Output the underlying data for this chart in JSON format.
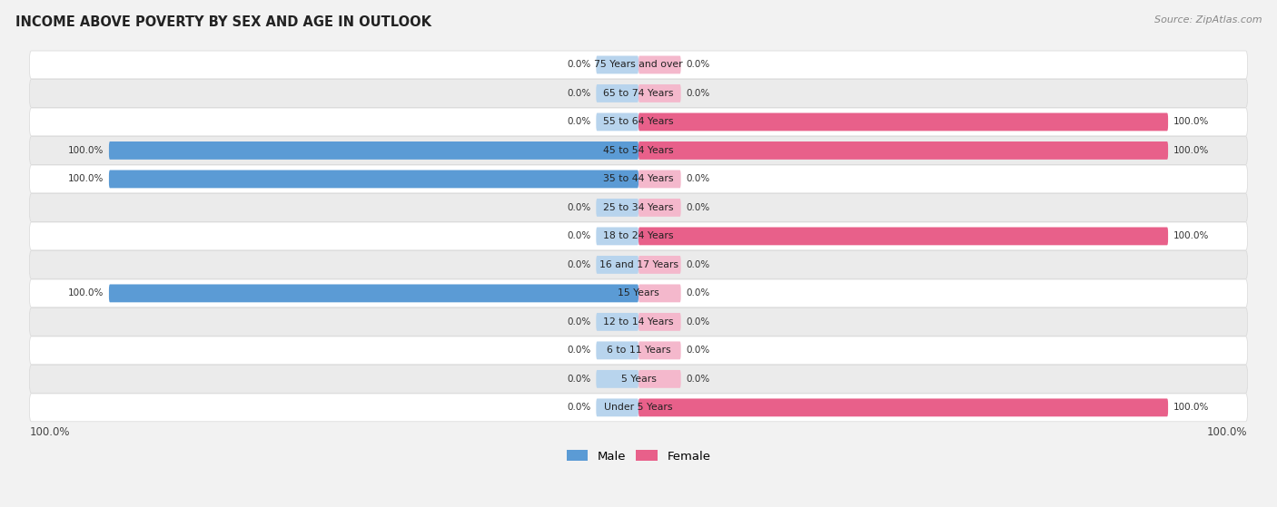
{
  "title": "INCOME ABOVE POVERTY BY SEX AND AGE IN OUTLOOK",
  "source": "Source: ZipAtlas.com",
  "categories": [
    "Under 5 Years",
    "5 Years",
    "6 to 11 Years",
    "12 to 14 Years",
    "15 Years",
    "16 and 17 Years",
    "18 to 24 Years",
    "25 to 34 Years",
    "35 to 44 Years",
    "45 to 54 Years",
    "55 to 64 Years",
    "65 to 74 Years",
    "75 Years and over"
  ],
  "male_values": [
    0.0,
    0.0,
    0.0,
    0.0,
    100.0,
    0.0,
    0.0,
    0.0,
    100.0,
    100.0,
    0.0,
    0.0,
    0.0
  ],
  "female_values": [
    100.0,
    0.0,
    0.0,
    0.0,
    0.0,
    0.0,
    100.0,
    0.0,
    0.0,
    100.0,
    100.0,
    0.0,
    0.0
  ],
  "male_color_full": "#5b9bd5",
  "male_color_small": "#b8d4ed",
  "female_color_full": "#e8608a",
  "female_color_small": "#f4b8cc",
  "bg_color": "#f2f2f2",
  "row_color_odd": "#ffffff",
  "row_color_even": "#ebebeb",
  "xlim_abs": 100,
  "small_bar_pct": 8,
  "bar_height": 0.62,
  "legend_male": "Male",
  "legend_female": "Female"
}
